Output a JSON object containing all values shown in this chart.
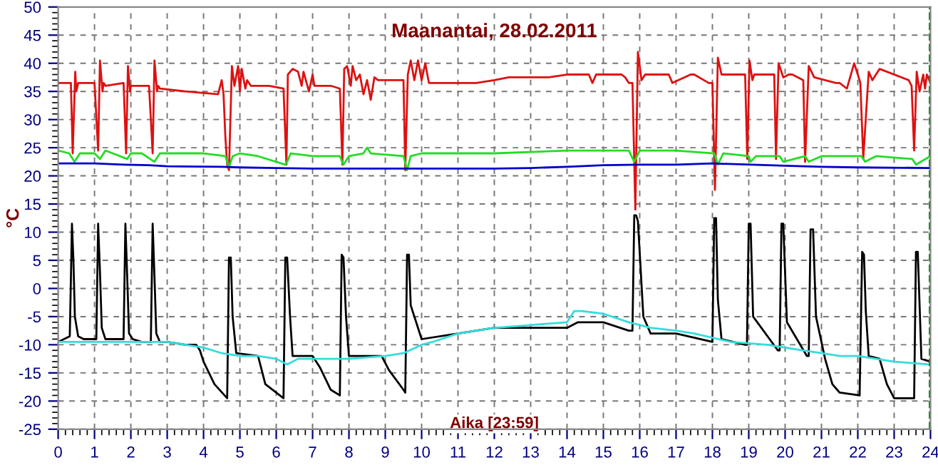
{
  "chart_data": {
    "type": "line",
    "title": "Maanantai, 28.02.2011",
    "xlabel": "Aika [23:59]",
    "ylabel": "°C",
    "xlim": [
      0,
      24
    ],
    "ylim": [
      -25,
      50
    ],
    "xticks": [
      0,
      1,
      2,
      3,
      4,
      5,
      6,
      7,
      8,
      9,
      10,
      11,
      12,
      13,
      14,
      15,
      16,
      17,
      18,
      19,
      20,
      21,
      22,
      23,
      24
    ],
    "yticks": [
      -25,
      -20,
      -15,
      -10,
      -5,
      0,
      5,
      10,
      15,
      20,
      25,
      30,
      35,
      40,
      45,
      50
    ],
    "grid": true,
    "line_style": "solid",
    "ref_lines": [
      {
        "axis": "x",
        "value": 23.98,
        "color": "#008000",
        "line_style": "dashed"
      }
    ],
    "series": [
      {
        "color": "#dd1111",
        "x": [
          0,
          0.35,
          0.4,
          0.47,
          0.5,
          0.55,
          1.0,
          1.1,
          1.15,
          1.22,
          1.25,
          1.3,
          1.8,
          1.87,
          1.92,
          1.98,
          2.0,
          2.5,
          2.6,
          2.65,
          2.72,
          2.75,
          2.8,
          3.5,
          4.4,
          4.5,
          4.55,
          4.6,
          4.65,
          4.7,
          4.78,
          4.85,
          4.95,
          5.0,
          5.05,
          5.15,
          5.2,
          5.3,
          5.8,
          6.2,
          6.28,
          6.32,
          6.45,
          6.6,
          6.7,
          6.75,
          6.9,
          7.0,
          7.05,
          7.5,
          7.75,
          7.82,
          7.87,
          7.95,
          8.05,
          8.1,
          8.2,
          8.3,
          8.4,
          8.5,
          8.6,
          8.7,
          8.8,
          9.5,
          9.55,
          9.62,
          9.7,
          9.8,
          9.9,
          10.0,
          10.1,
          10.2,
          10.3,
          10.5,
          11.5,
          12.0,
          12.4,
          13.5,
          14.0,
          14.6,
          14.7,
          14.8,
          15.5,
          15.6,
          15.7,
          15.8,
          15.88,
          15.95,
          16.05,
          16.15,
          16.3,
          16.8,
          16.9,
          17.4,
          17.5,
          17.9,
          18.0,
          18.07,
          18.15,
          18.25,
          18.9,
          18.96,
          19.02,
          19.1,
          19.15,
          19.7,
          19.75,
          19.82,
          19.95,
          20.1,
          20.2,
          20.5,
          20.55,
          20.65,
          20.8,
          21.4,
          21.5,
          21.7,
          21.9,
          22.0,
          22.07,
          22.15,
          22.3,
          22.4,
          22.6,
          23.4,
          23.48,
          23.55,
          23.62,
          23.7,
          23.8,
          23.85,
          23.9,
          24.0
        ],
        "values": [
          36.5,
          36.5,
          24,
          38.5,
          35,
          36.5,
          36.5,
          24.5,
          40.5,
          35,
          36.5,
          36,
          36.5,
          24,
          39.5,
          35,
          36,
          36,
          24,
          40.5,
          35,
          36,
          35.5,
          35,
          34.5,
          37,
          34.5,
          27,
          22,
          21,
          39.5,
          36,
          39.5,
          35,
          39,
          35.5,
          37,
          36,
          36,
          35.5,
          22,
          38,
          39,
          38.5,
          36,
          38.5,
          35,
          38,
          36,
          36,
          35.5,
          22,
          39,
          39.5,
          36,
          39.5,
          37,
          38,
          34.5,
          37,
          33.5,
          37.5,
          37,
          37,
          21,
          38,
          40.5,
          37,
          40.5,
          37,
          40,
          36.5,
          36.5,
          36.5,
          36.5,
          37,
          37.5,
          37.5,
          38,
          38,
          36.5,
          38,
          38,
          37.5,
          36.5,
          36.5,
          14,
          42,
          37,
          38,
          38,
          38,
          36.5,
          38,
          38,
          36.5,
          36.5,
          17.5,
          41,
          38,
          38,
          23,
          40.5,
          37,
          38,
          38,
          23,
          40,
          37.5,
          38,
          38,
          37,
          22.5,
          39.5,
          37.5,
          36.5,
          36.5,
          35.5,
          40,
          38,
          36.5,
          23,
          38.5,
          37,
          39,
          37,
          36,
          24.5,
          38.5,
          35,
          38,
          35.5,
          38,
          36.5
        ]
      },
      {
        "color": "#22dd22",
        "x": [
          0,
          0.3,
          0.45,
          0.6,
          1.0,
          1.15,
          1.3,
          1.5,
          1.9,
          2.0,
          2.3,
          2.65,
          2.8,
          3.0,
          4.0,
          4.6,
          4.7,
          4.8,
          5.0,
          5.5,
          6.25,
          6.3,
          6.4,
          7.0,
          7.75,
          7.85,
          8.0,
          8.4,
          8.5,
          8.6,
          9.5,
          9.6,
          9.7,
          10.0,
          11.0,
          12.0,
          14.0,
          15.7,
          15.85,
          16.0,
          17.0,
          18.05,
          18.15,
          18.3,
          19.0,
          19.05,
          19.2,
          19.85,
          19.95,
          20.55,
          20.65,
          21.0,
          22.1,
          22.2,
          22.5,
          23.5,
          23.6,
          24.0
        ],
        "values": [
          24.5,
          24,
          22.5,
          24,
          24,
          23,
          24.5,
          24,
          23,
          24,
          24,
          22.5,
          24,
          24,
          24,
          23.5,
          21.5,
          23.5,
          24,
          23.5,
          22,
          22.5,
          24,
          23.5,
          23.5,
          22,
          23.5,
          24,
          25,
          24,
          23.5,
          21,
          23.5,
          24,
          24,
          24,
          24.5,
          24.5,
          22.5,
          24.5,
          24.5,
          24,
          22,
          24,
          23.5,
          22.5,
          23.5,
          23.5,
          22.5,
          23.5,
          22.5,
          23.5,
          23.5,
          22.5,
          23.5,
          23,
          22,
          23.5
        ]
      },
      {
        "color": "#0000cc",
        "x": [
          0,
          1.0,
          1.8,
          2.5,
          3.0,
          4.5,
          5.0,
          6.0,
          7.0,
          10.0,
          12.0,
          13.0,
          14.0,
          15.0,
          16.0,
          17.0,
          18.0,
          20.0,
          21.0,
          22.0,
          24.0
        ],
        "values": [
          22.2,
          22.2,
          22,
          21.9,
          21.7,
          21.6,
          21.5,
          21.4,
          21.3,
          21.3,
          21.3,
          21.4,
          21.6,
          21.9,
          22,
          22,
          22.2,
          21.8,
          21.6,
          21.5,
          21.4
        ]
      },
      {
        "color": "#000000",
        "x": [
          0,
          0.32,
          0.38,
          0.42,
          0.46,
          0.55,
          0.7,
          1.05,
          1.1,
          1.15,
          1.2,
          1.3,
          1.5,
          1.8,
          1.85,
          1.9,
          1.95,
          2.05,
          2.3,
          2.55,
          2.6,
          2.65,
          2.7,
          2.8,
          3.0,
          3.5,
          3.8,
          3.9,
          4.0,
          4.3,
          4.65,
          4.7,
          4.75,
          4.8,
          4.9,
          5.5,
          5.7,
          6.2,
          6.25,
          6.3,
          6.38,
          6.45,
          7.0,
          7.2,
          7.5,
          7.75,
          7.8,
          7.85,
          7.92,
          8.0,
          8.9,
          9.1,
          9.5,
          9.55,
          9.6,
          9.65,
          9.7,
          10.0,
          11.0,
          12.0,
          14.0,
          14.3,
          15.0,
          15.7,
          15.8,
          15.85,
          15.9,
          15.95,
          16.1,
          16.3,
          17.0,
          18.0,
          18.05,
          18.1,
          18.15,
          18.25,
          18.9,
          18.95,
          19.0,
          19.05,
          19.12,
          19.8,
          19.85,
          19.9,
          19.95,
          20.05,
          20.6,
          20.65,
          20.7,
          20.77,
          20.85,
          21.1,
          21.3,
          21.5,
          22.05,
          22.12,
          22.17,
          22.22,
          22.3,
          22.6,
          22.8,
          23.0,
          23.5,
          23.55,
          23.6,
          23.65,
          23.75,
          24.0
        ],
        "values": [
          -9.5,
          -8.5,
          11.5,
          5,
          -5,
          -8.5,
          -9,
          -9,
          11.5,
          3,
          -7,
          -9,
          -9,
          -9,
          11.5,
          2,
          -8,
          -9,
          -9.5,
          -9.5,
          11.5,
          2,
          -8,
          -9.5,
          -9.5,
          -10,
          -10,
          -11,
          -13,
          -17,
          -19.5,
          5.5,
          5.5,
          -5,
          -11.5,
          -12,
          -17,
          -19.5,
          5.5,
          5.5,
          -5,
          -12,
          -12,
          -14,
          -18,
          -19,
          6,
          5.5,
          -5,
          -12,
          -12,
          -14.5,
          -18,
          -18.5,
          6,
          6,
          -3,
          -9,
          -8,
          -7,
          -7,
          -6,
          -6,
          -7.5,
          -7.5,
          13,
          13,
          12,
          -5,
          -8,
          -8,
          -9.5,
          12.5,
          12.5,
          -2,
          -9,
          -10,
          -10,
          11.5,
          11.5,
          -5,
          -11,
          -11,
          11.5,
          11.5,
          -6,
          -12,
          -12,
          10.5,
          10.5,
          -5,
          -12.5,
          -17,
          -18.5,
          -19,
          6.5,
          6,
          -4,
          -12,
          -12.5,
          -17,
          -19.5,
          -19.5,
          -19.5,
          6.5,
          6.5,
          -12.5,
          -13
        ]
      },
      {
        "color": "#33dddd",
        "x": [
          0,
          1.0,
          2.0,
          3.0,
          3.5,
          4.0,
          4.5,
          5.0,
          5.5,
          6.0,
          6.3,
          6.6,
          7.0,
          8.0,
          9.0,
          9.5,
          10.0,
          10.3,
          11.0,
          12.0,
          13.0,
          14.0,
          14.2,
          14.4,
          15.0,
          15.7,
          16.3,
          17.0,
          17.5,
          18.5,
          19.5,
          20.0,
          20.5,
          21.0,
          21.5,
          22.0,
          22.5,
          23.0,
          24.0
        ],
        "values": [
          -9.5,
          -9.5,
          -9.5,
          -9.5,
          -10,
          -10.5,
          -11.5,
          -12,
          -12,
          -12.5,
          -13.5,
          -12.5,
          -12.5,
          -12.5,
          -12,
          -11.5,
          -10,
          -9.5,
          -8,
          -7,
          -6.5,
          -6,
          -4,
          -4,
          -4.5,
          -6,
          -7,
          -7.5,
          -8,
          -9.5,
          -10,
          -10.5,
          -11,
          -11.5,
          -12,
          -12,
          -12.5,
          -13,
          -13.5
        ]
      }
    ]
  }
}
